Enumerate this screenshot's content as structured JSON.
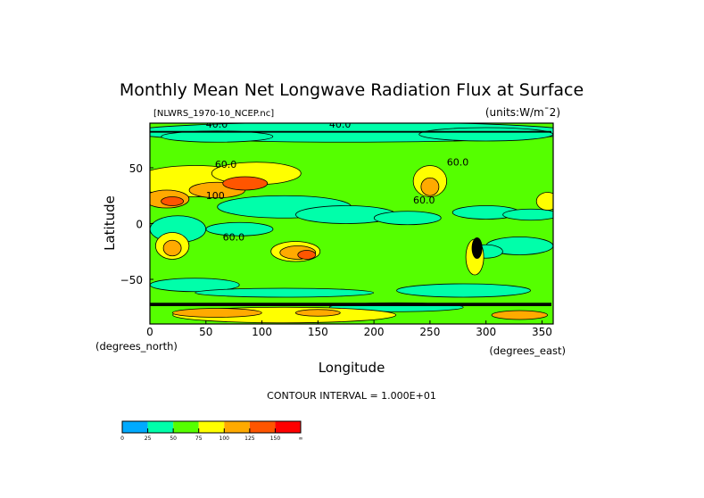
{
  "chart_data": {
    "type": "heatmap",
    "title": "Monthly Mean Net Longwave Radiation Flux at Surface",
    "subtitle": "[NLWRS_1970-10_NCEP.nc]",
    "units": "(units:W/m¯2)",
    "xlabel": "Longitude",
    "ylabel": "Latitude",
    "x_units": "(degrees_north)",
    "y_units": "(degrees_east)",
    "xlim": [
      0,
      360
    ],
    "ylim": [
      -90,
      90
    ],
    "x_ticks": [
      "0",
      "50",
      "100",
      "150",
      "200",
      "250",
      "300",
      "350"
    ],
    "y_ticks": [
      "50",
      "0",
      "−50"
    ],
    "contour_interval": "CONTOUR INTERVAL = 1.000E+01",
    "contour_labels": [
      "40.0",
      "40.0",
      "60.0",
      "60.0",
      "60.0",
      "60.0",
      "100"
    ],
    "colorbar": {
      "levels": [
        "0",
        "25",
        "50",
        "75",
        "100",
        "125",
        "150",
        "∞"
      ],
      "colors": [
        "#00aaff",
        "#00ffaa",
        "#55ff00",
        "#ffff00",
        "#ffaa00",
        "#ff5500",
        "#ff0000"
      ]
    }
  }
}
